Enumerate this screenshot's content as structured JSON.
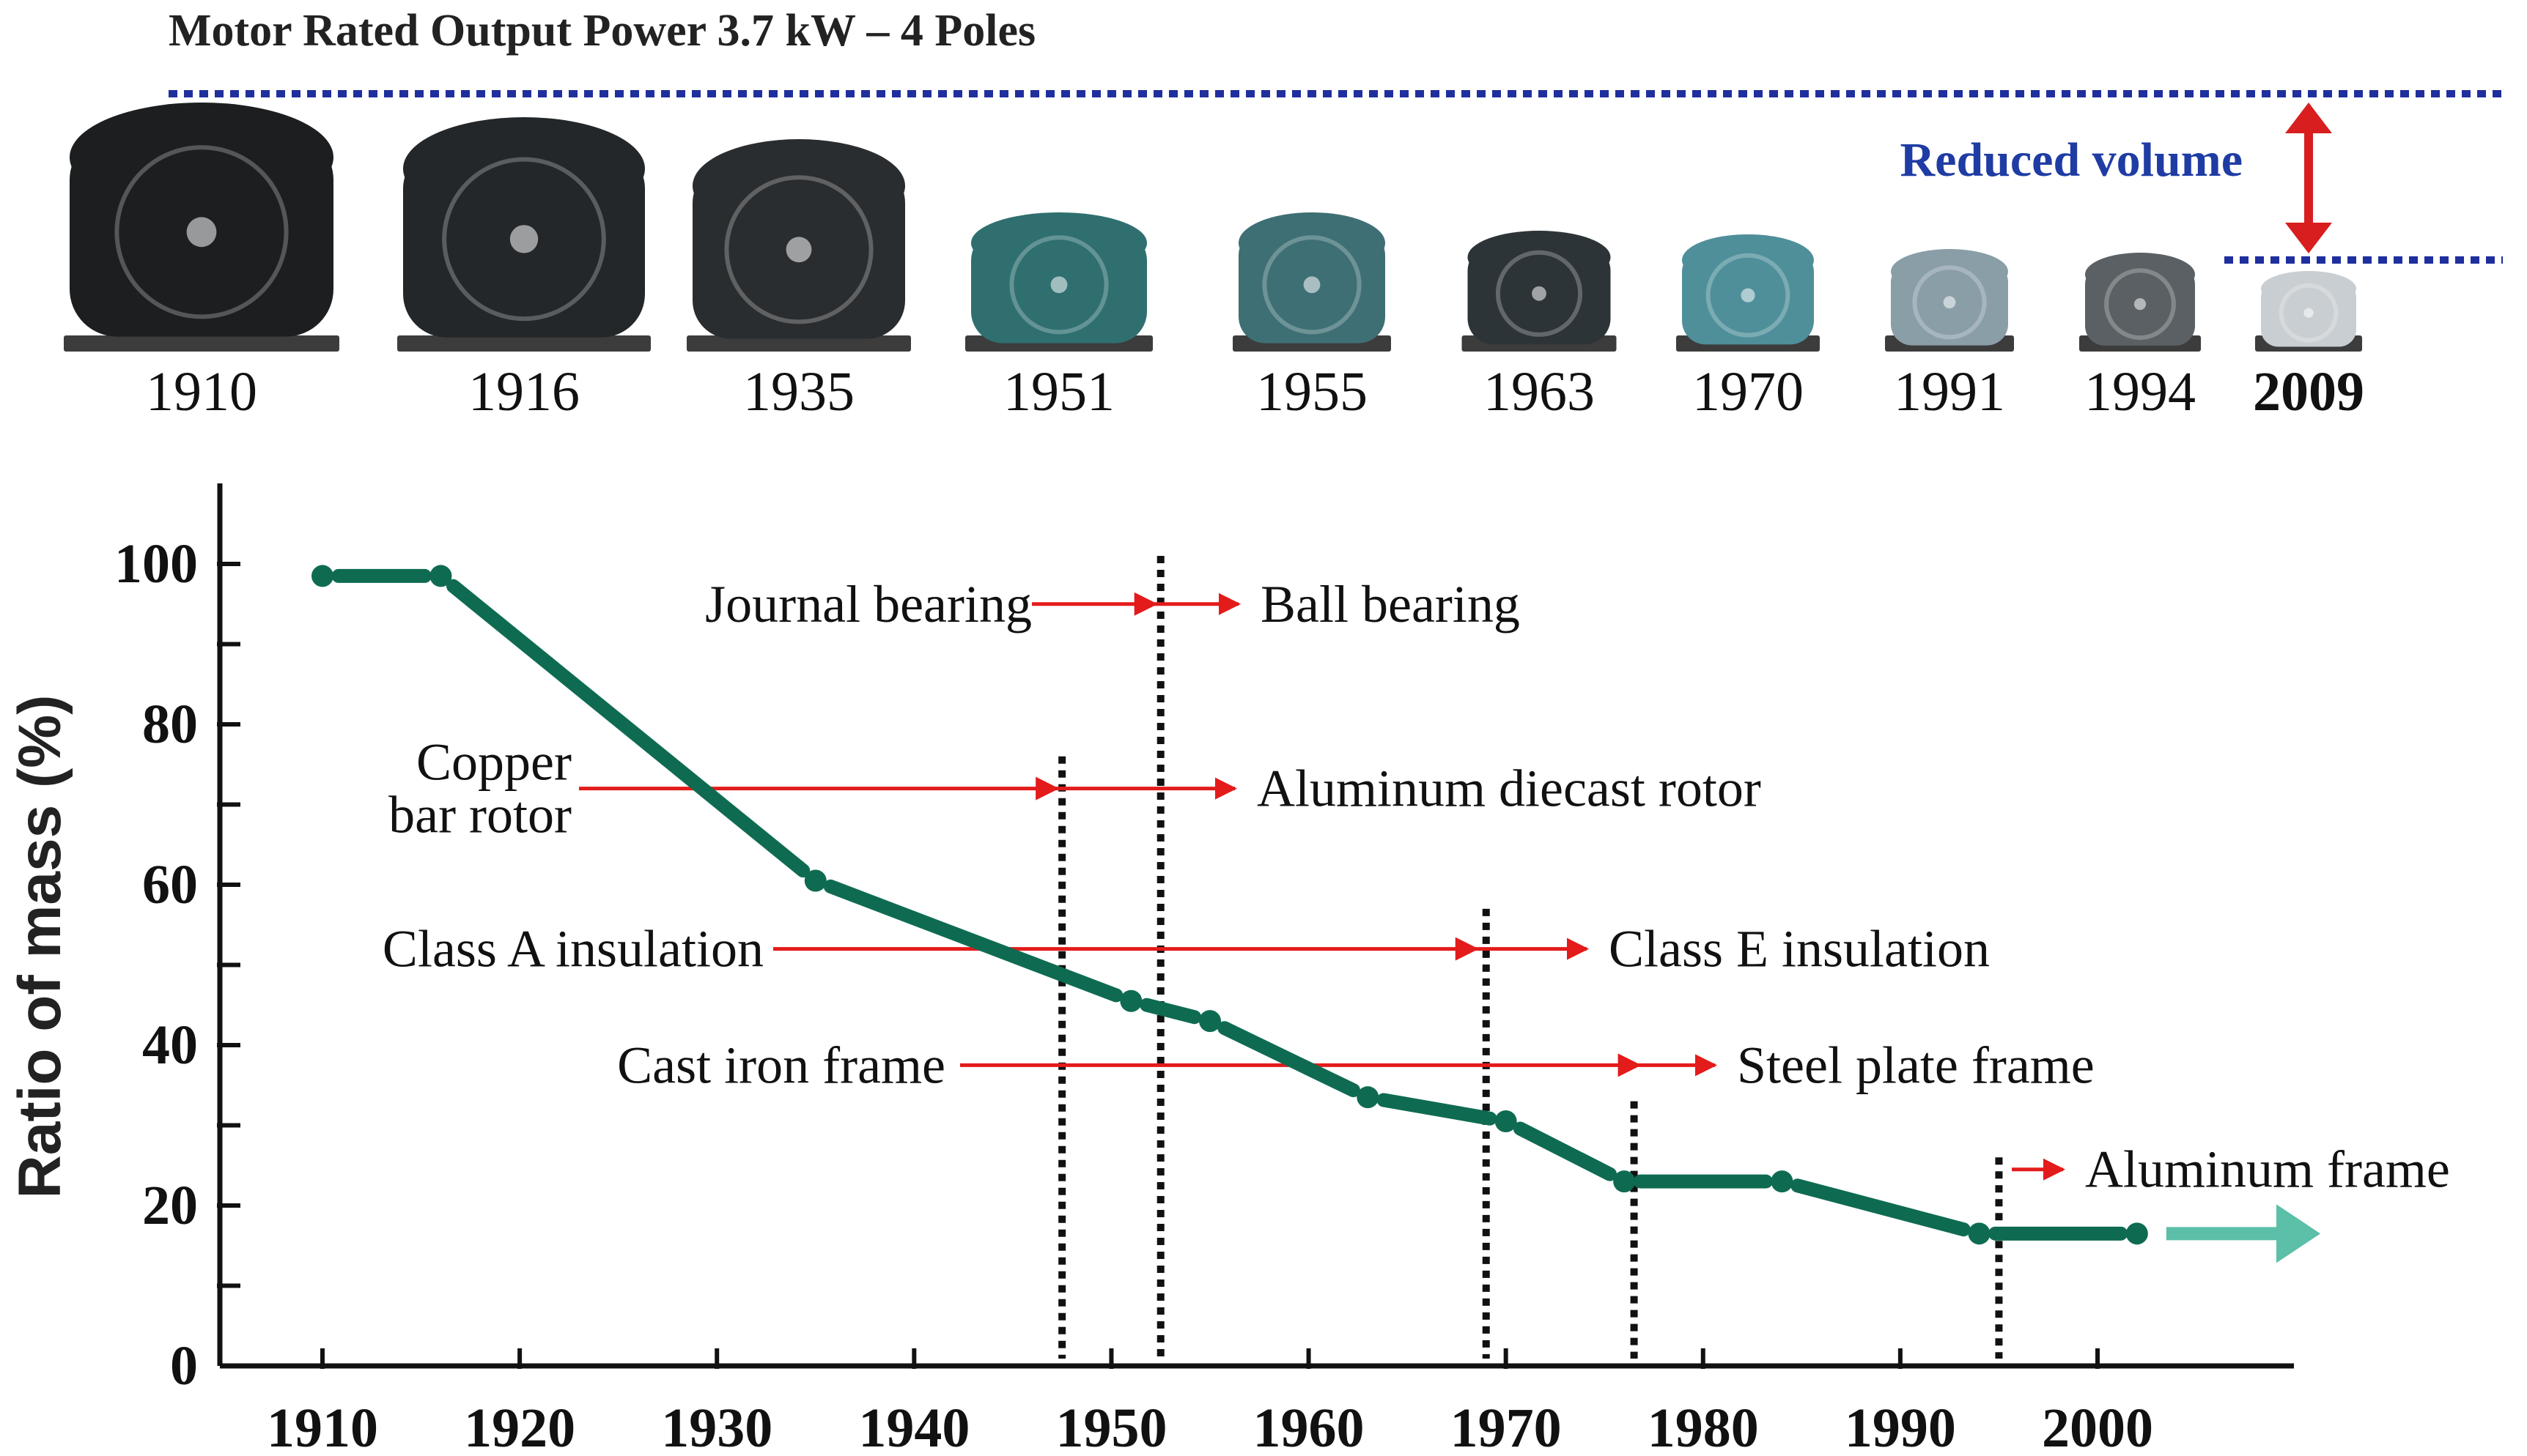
{
  "header": {
    "title": "Motor Rated Output Power 3.7 kW – 4 Poles",
    "reduced_volume_label": "Reduced volume"
  },
  "motors": [
    {
      "year": "1910",
      "icon": "motor-1910-icon",
      "color": "#1c1e1f"
    },
    {
      "year": "1916",
      "icon": "motor-1916-icon",
      "color": "#23272a"
    },
    {
      "year": "1935",
      "icon": "motor-1935-icon",
      "color": "#2a2d2f"
    },
    {
      "year": "1951",
      "icon": "motor-1951-icon",
      "color": "#2f6f70"
    },
    {
      "year": "1955",
      "icon": "motor-1955-icon",
      "color": "#3e6f74"
    },
    {
      "year": "1963",
      "icon": "motor-1963-icon",
      "color": "#2d3438"
    },
    {
      "year": "1970",
      "icon": "motor-1970-icon",
      "color": "#4f8f9a"
    },
    {
      "year": "1991",
      "icon": "motor-1991-icon",
      "color": "#8a9ea8"
    },
    {
      "year": "1994",
      "icon": "motor-1994-icon",
      "color": "#5a6064"
    },
    {
      "year": "2009",
      "icon": "motor-2009-icon",
      "color": "#c9ced2"
    }
  ],
  "chart_data": {
    "type": "line",
    "ylabel": "Ratio of mass (%)",
    "xlabel": "",
    "xlim": [
      1905,
      2010
    ],
    "ylim": [
      0,
      105
    ],
    "x_ticks": [
      1910,
      1920,
      1930,
      1940,
      1950,
      1960,
      1970,
      1980,
      1990,
      2000
    ],
    "y_ticks": [
      0,
      20,
      40,
      60,
      80,
      100
    ],
    "series": [
      {
        "name": "Ratio of mass",
        "color": "#0e6b52",
        "x": [
          1910,
          1916,
          1935,
          1951,
          1955,
          1963,
          1970,
          1976,
          1984,
          1994,
          2002
        ],
        "y": [
          98.5,
          98.5,
          60.5,
          45.5,
          43,
          33.5,
          30.5,
          23,
          23,
          16.5,
          16.5
        ]
      }
    ],
    "trend_arrow": {
      "x_start": 2002,
      "x_end": 2011,
      "y": 16.5,
      "color": "#5cbfa8"
    },
    "transitions": [
      {
        "from": "Journal bearing",
        "to": "Ball bearing",
        "year": 1952.5,
        "y": 95,
        "line_top": 101
      },
      {
        "from": "Copper\nbar rotor",
        "to": "Aluminum diecast rotor",
        "year": 1947.5,
        "y": 72,
        "line_top": 76
      },
      {
        "from": "Class A insulation",
        "to": "Class E insulation",
        "year": 1969,
        "y": 52,
        "line_top": 57
      },
      {
        "from": "Cast iron frame",
        "to": "Steel plate frame",
        "year": 1976.5,
        "y": 37.5,
        "line_top": 33
      },
      {
        "from": "",
        "to": "Aluminum frame",
        "year": 1995,
        "y": 24.5,
        "line_top": 26
      }
    ],
    "arrow_color": "#e31b1b",
    "dotted_line_color": "#111111"
  }
}
